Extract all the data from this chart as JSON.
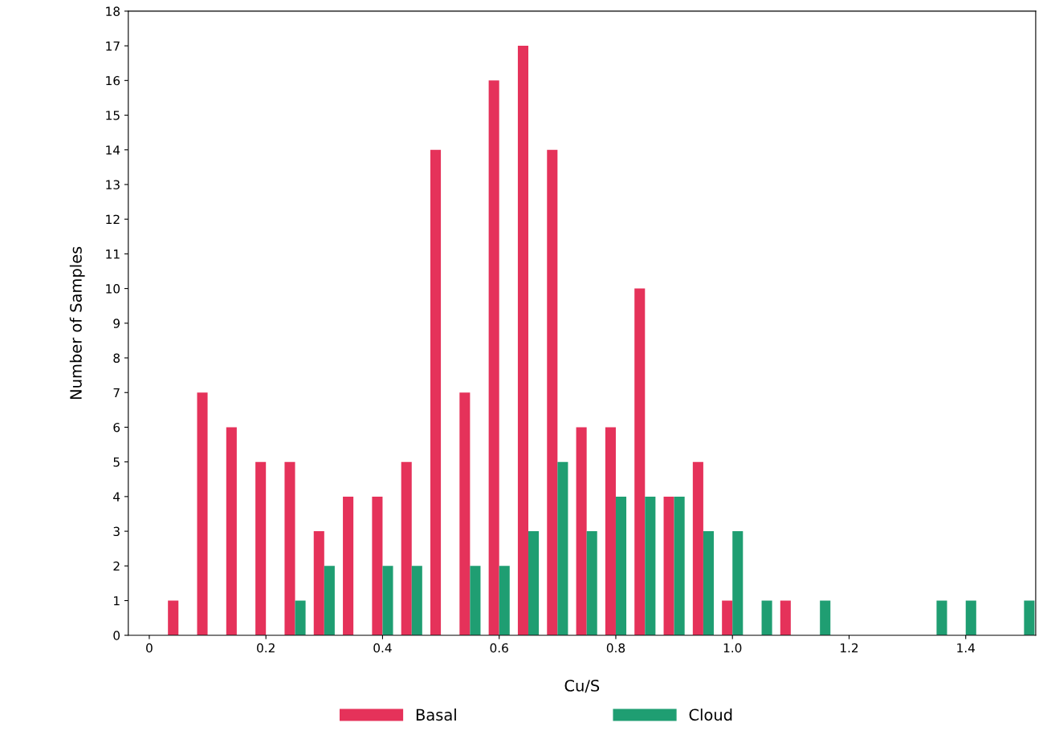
{
  "chart_data": {
    "type": "bar",
    "xlabel": "Cu/S",
    "ylabel": "Number of Samples",
    "x": [
      0.05,
      0.1,
      0.15,
      0.2,
      0.25,
      0.3,
      0.35,
      0.4,
      0.45,
      0.5,
      0.55,
      0.6,
      0.65,
      0.7,
      0.75,
      0.8,
      0.85,
      0.9,
      0.95,
      1.0,
      1.05,
      1.1,
      1.15,
      1.2,
      1.25,
      1.3,
      1.35,
      1.4,
      1.45,
      1.5
    ],
    "series": [
      {
        "name": "Basal",
        "color": "#e5325a",
        "values": [
          1,
          7,
          6,
          5,
          5,
          3,
          4,
          4,
          5,
          14,
          7,
          16,
          17,
          14,
          6,
          6,
          10,
          4,
          5,
          1,
          null,
          1,
          null,
          null,
          null,
          null,
          null,
          null,
          null,
          null
        ]
      },
      {
        "name": "Cloud",
        "color": "#1f9e72",
        "values": [
          null,
          null,
          null,
          null,
          1,
          2,
          null,
          2,
          2,
          null,
          2,
          2,
          3,
          5,
          3,
          4,
          4,
          4,
          3,
          3,
          1,
          null,
          1,
          null,
          null,
          null,
          1,
          1,
          null,
          1
        ]
      }
    ],
    "xlim": [
      -0.036,
      1.52
    ],
    "ylim": [
      0,
      18
    ],
    "xticks": [
      0,
      0.2,
      0.4,
      0.6,
      0.8,
      {
        "value": 1.0,
        "label": "1.0"
      },
      1.2,
      1.4
    ],
    "yticks": [
      0,
      1,
      2,
      3,
      4,
      5,
      6,
      7,
      8,
      9,
      10,
      11,
      12,
      13,
      14,
      15,
      16,
      17,
      18
    ],
    "grid": false,
    "legend": "bottom"
  }
}
